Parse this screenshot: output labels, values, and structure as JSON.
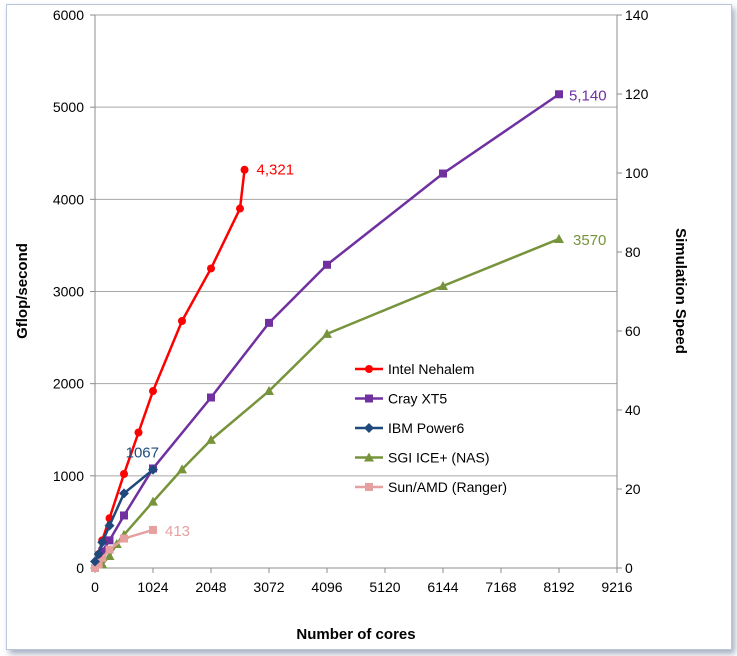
{
  "chart_data": {
    "type": "line",
    "title": "",
    "xlabel": "Number of cores",
    "ylabel": "Gflop/second",
    "y2label": "Simulation Speed",
    "xlim": [
      0,
      9216
    ],
    "ylim": [
      0,
      6000
    ],
    "y2lim": [
      0,
      140
    ],
    "x_ticks": [
      0,
      1024,
      2048,
      3072,
      4096,
      5120,
      6144,
      7168,
      8192,
      9216
    ],
    "y_ticks": [
      0,
      1000,
      2000,
      3000,
      4000,
      5000,
      6000
    ],
    "y2_ticks": [
      0,
      20,
      40,
      60,
      80,
      100,
      120,
      140
    ],
    "grid": "horizontal",
    "legend_position": "center-right",
    "series": [
      {
        "name": "Intel Nehalem",
        "color": "#ff0000",
        "marker": "circle",
        "x": [
          64,
          128,
          256,
          512,
          768,
          1024,
          1536,
          2048,
          2560,
          2640
        ],
        "y": [
          150,
          300,
          540,
          1020,
          1470,
          1920,
          2680,
          3250,
          3900,
          4321
        ],
        "end_label": "4,321"
      },
      {
        "name": "Cray XT5",
        "color": "#7030a0",
        "marker": "square",
        "x": [
          128,
          256,
          512,
          1024,
          2048,
          3072,
          4096,
          6144,
          8192
        ],
        "y": [
          180,
          300,
          570,
          1080,
          1850,
          2660,
          3290,
          4280,
          5140
        ],
        "end_label": "5,140"
      },
      {
        "name": "IBM Power6",
        "color": "#1f497d",
        "marker": "diamond",
        "x": [
          0,
          64,
          128,
          256,
          512,
          1024
        ],
        "y": [
          70,
          150,
          280,
          460,
          810,
          1067
        ],
        "end_label": "1067"
      },
      {
        "name": "SGI ICE+ (NAS)",
        "color": "#77933c",
        "marker": "triangle",
        "x": [
          128,
          256,
          384,
          512,
          1024,
          1536,
          2048,
          3072,
          4096,
          6144,
          8192
        ],
        "y": [
          40,
          130,
          260,
          360,
          720,
          1070,
          1390,
          1920,
          2540,
          3060,
          3570
        ],
        "end_label": "3570"
      },
      {
        "name": "Sun/AMD (Ranger)",
        "color": "#e6a0a0",
        "marker": "square",
        "x": [
          0,
          64,
          128,
          256,
          512,
          1024
        ],
        "y": [
          0,
          40,
          110,
          200,
          320,
          413
        ],
        "end_label": "413"
      }
    ]
  }
}
